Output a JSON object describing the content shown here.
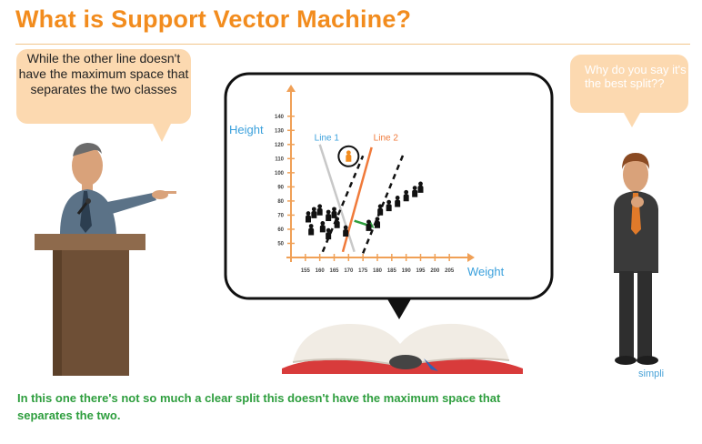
{
  "title": "What is Support Vector Machine?",
  "bubble_left": "While the other line doesn't have the maximum space that separates the two classes",
  "bubble_right": "Why do you say it's the best split??",
  "caption": "In this one there's not so much a clear split this doesn't have the maximum space that separates the two.",
  "watermark": "simpli",
  "chart_data": {
    "type": "scatter",
    "xlabel": "Weight",
    "ylabel": "Height",
    "xticks": [
      155,
      160,
      165,
      170,
      175,
      180,
      185,
      190,
      195,
      200,
      205
    ],
    "yticks": [
      50,
      60,
      70,
      80,
      90,
      100,
      110,
      120,
      130,
      140
    ],
    "xlim": [
      150,
      210
    ],
    "ylim": [
      40,
      145
    ],
    "lines": [
      {
        "name": "Line 1",
        "color": "#c8c8c8",
        "style": "solid"
      },
      {
        "name": "Line 2",
        "color": "#f07a3a",
        "style": "solid"
      }
    ],
    "class_a_points": [
      {
        "x": 156,
        "y": 68
      },
      {
        "x": 158,
        "y": 71
      },
      {
        "x": 160,
        "y": 73
      },
      {
        "x": 163,
        "y": 69
      },
      {
        "x": 165,
        "y": 71
      },
      {
        "x": 157,
        "y": 59
      },
      {
        "x": 161,
        "y": 61
      },
      {
        "x": 166,
        "y": 64
      },
      {
        "x": 163,
        "y": 56
      },
      {
        "x": 169,
        "y": 58
      }
    ],
    "class_b_points": [
      {
        "x": 181,
        "y": 73
      },
      {
        "x": 184,
        "y": 76
      },
      {
        "x": 187,
        "y": 79
      },
      {
        "x": 190,
        "y": 83
      },
      {
        "x": 193,
        "y": 86
      },
      {
        "x": 195,
        "y": 89
      },
      {
        "x": 177,
        "y": 62
      },
      {
        "x": 180,
        "y": 64
      }
    ],
    "highlighted_point": {
      "x": 170,
      "y": 111
    },
    "colors": {
      "axis": "#f0a056",
      "accent": "#f28c1e",
      "margin_arrow": "#2e9e3e",
      "ylabel": "#3aa0dc"
    }
  }
}
